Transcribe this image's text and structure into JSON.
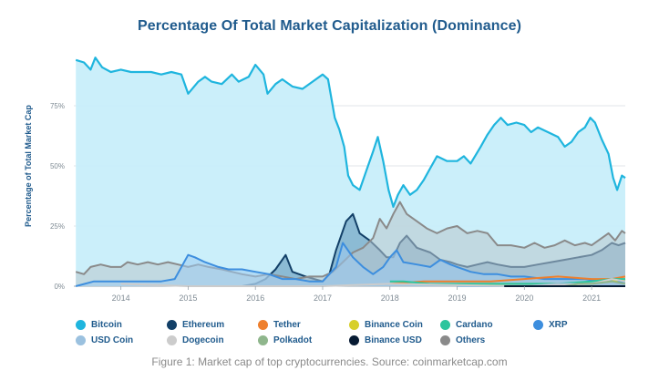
{
  "chart_data": {
    "type": "area",
    "title": "Percentage Of Total Market Capitalization (Dominance)",
    "xlabel": "",
    "ylabel": "Percentage of Total Market Cap",
    "y_ticks": [
      "0%",
      "25%",
      "50%",
      "75%"
    ],
    "x_ticks": [
      "2014",
      "2015",
      "2016",
      "2017",
      "2018",
      "2019",
      "2020",
      "2021"
    ],
    "xlim": [
      2013.3,
      2021.5
    ],
    "ylim": [
      0,
      95
    ],
    "grid": "horizontal",
    "legend_position": "bottom",
    "series": [
      {
        "name": "Bitcoin",
        "color": "#1fb5de",
        "fill": "#c8eefa",
        "points": [
          [
            2013.33,
            94
          ],
          [
            2013.45,
            93
          ],
          [
            2013.55,
            90
          ],
          [
            2013.62,
            95
          ],
          [
            2013.72,
            91
          ],
          [
            2013.85,
            89
          ],
          [
            2014.0,
            90
          ],
          [
            2014.15,
            89
          ],
          [
            2014.3,
            89
          ],
          [
            2014.45,
            89
          ],
          [
            2014.6,
            88
          ],
          [
            2014.75,
            89
          ],
          [
            2014.9,
            88
          ],
          [
            2015.0,
            80
          ],
          [
            2015.15,
            85
          ],
          [
            2015.25,
            87
          ],
          [
            2015.35,
            85
          ],
          [
            2015.5,
            84
          ],
          [
            2015.65,
            88
          ],
          [
            2015.75,
            85
          ],
          [
            2015.9,
            87
          ],
          [
            2016.0,
            92
          ],
          [
            2016.12,
            88
          ],
          [
            2016.18,
            80
          ],
          [
            2016.3,
            84
          ],
          [
            2016.4,
            86
          ],
          [
            2016.55,
            83
          ],
          [
            2016.7,
            82
          ],
          [
            2016.85,
            85
          ],
          [
            2017.0,
            88
          ],
          [
            2017.08,
            86
          ],
          [
            2017.18,
            70
          ],
          [
            2017.25,
            65
          ],
          [
            2017.32,
            58
          ],
          [
            2017.38,
            46
          ],
          [
            2017.45,
            42
          ],
          [
            2017.55,
            40
          ],
          [
            2017.65,
            48
          ],
          [
            2017.75,
            56
          ],
          [
            2017.82,
            62
          ],
          [
            2017.9,
            52
          ],
          [
            2017.98,
            40
          ],
          [
            2018.05,
            33
          ],
          [
            2018.12,
            38
          ],
          [
            2018.2,
            42
          ],
          [
            2018.3,
            38
          ],
          [
            2018.4,
            40
          ],
          [
            2018.5,
            44
          ],
          [
            2018.6,
            49
          ],
          [
            2018.7,
            54
          ],
          [
            2018.85,
            52
          ],
          [
            2019.0,
            52
          ],
          [
            2019.1,
            54
          ],
          [
            2019.2,
            51
          ],
          [
            2019.35,
            58
          ],
          [
            2019.45,
            63
          ],
          [
            2019.55,
            67
          ],
          [
            2019.65,
            70
          ],
          [
            2019.75,
            67
          ],
          [
            2019.88,
            68
          ],
          [
            2020.0,
            67
          ],
          [
            2020.1,
            64
          ],
          [
            2020.2,
            66
          ],
          [
            2020.35,
            64
          ],
          [
            2020.5,
            62
          ],
          [
            2020.6,
            58
          ],
          [
            2020.7,
            60
          ],
          [
            2020.8,
            64
          ],
          [
            2020.9,
            66
          ],
          [
            2020.98,
            70
          ],
          [
            2021.05,
            68
          ],
          [
            2021.15,
            61
          ],
          [
            2021.25,
            55
          ],
          [
            2021.32,
            45
          ],
          [
            2021.38,
            40
          ],
          [
            2021.45,
            46
          ],
          [
            2021.5,
            45
          ]
        ]
      },
      {
        "name": "Ethereum",
        "color": "#123f67",
        "fill": "#5a8fb5",
        "points": [
          [
            2015.6,
            0
          ],
          [
            2015.8,
            0
          ],
          [
            2016.0,
            1
          ],
          [
            2016.15,
            3
          ],
          [
            2016.3,
            7
          ],
          [
            2016.45,
            13
          ],
          [
            2016.55,
            6
          ],
          [
            2016.75,
            4
          ],
          [
            2017.0,
            2
          ],
          [
            2017.1,
            5
          ],
          [
            2017.2,
            15
          ],
          [
            2017.35,
            27
          ],
          [
            2017.45,
            30
          ],
          [
            2017.55,
            22
          ],
          [
            2017.7,
            19
          ],
          [
            2017.85,
            15
          ],
          [
            2017.95,
            12
          ],
          [
            2018.05,
            12
          ],
          [
            2018.15,
            18
          ],
          [
            2018.25,
            21
          ],
          [
            2018.4,
            16
          ],
          [
            2018.6,
            14
          ],
          [
            2018.75,
            11
          ],
          [
            2018.9,
            10
          ],
          [
            2019.0,
            9
          ],
          [
            2019.15,
            8
          ],
          [
            2019.3,
            9
          ],
          [
            2019.45,
            10
          ],
          [
            2019.6,
            9
          ],
          [
            2019.8,
            8
          ],
          [
            2020.0,
            8
          ],
          [
            2020.2,
            9
          ],
          [
            2020.4,
            10
          ],
          [
            2020.6,
            11
          ],
          [
            2020.8,
            12
          ],
          [
            2021.0,
            13
          ],
          [
            2021.15,
            15
          ],
          [
            2021.3,
            18
          ],
          [
            2021.4,
            17
          ],
          [
            2021.5,
            18
          ]
        ]
      },
      {
        "name": "Others",
        "color": "#8a8a8a",
        "fill": "#b9c6cc",
        "points": [
          [
            2013.33,
            6
          ],
          [
            2013.45,
            5
          ],
          [
            2013.55,
            8
          ],
          [
            2013.7,
            9
          ],
          [
            2013.85,
            8
          ],
          [
            2014.0,
            8
          ],
          [
            2014.1,
            10
          ],
          [
            2014.25,
            9
          ],
          [
            2014.4,
            10
          ],
          [
            2014.55,
            9
          ],
          [
            2014.7,
            10
          ],
          [
            2014.85,
            9
          ],
          [
            2015.0,
            8
          ],
          [
            2015.15,
            9
          ],
          [
            2015.3,
            8
          ],
          [
            2015.5,
            7
          ],
          [
            2015.65,
            6
          ],
          [
            2015.8,
            5
          ],
          [
            2016.0,
            4
          ],
          [
            2016.2,
            5
          ],
          [
            2016.4,
            4
          ],
          [
            2016.6,
            3
          ],
          [
            2016.8,
            4
          ],
          [
            2017.0,
            4
          ],
          [
            2017.15,
            6
          ],
          [
            2017.3,
            10
          ],
          [
            2017.45,
            14
          ],
          [
            2017.6,
            16
          ],
          [
            2017.75,
            20
          ],
          [
            2017.85,
            28
          ],
          [
            2017.95,
            24
          ],
          [
            2018.05,
            30
          ],
          [
            2018.15,
            35
          ],
          [
            2018.25,
            30
          ],
          [
            2018.4,
            27
          ],
          [
            2018.55,
            24
          ],
          [
            2018.7,
            22
          ],
          [
            2018.85,
            24
          ],
          [
            2019.0,
            25
          ],
          [
            2019.15,
            22
          ],
          [
            2019.3,
            23
          ],
          [
            2019.45,
            22
          ],
          [
            2019.6,
            17
          ],
          [
            2019.8,
            17
          ],
          [
            2020.0,
            16
          ],
          [
            2020.15,
            18
          ],
          [
            2020.3,
            16
          ],
          [
            2020.45,
            17
          ],
          [
            2020.6,
            19
          ],
          [
            2020.75,
            17
          ],
          [
            2020.9,
            18
          ],
          [
            2021.0,
            17
          ],
          [
            2021.1,
            19
          ],
          [
            2021.25,
            22
          ],
          [
            2021.35,
            19
          ],
          [
            2021.45,
            23
          ],
          [
            2021.5,
            22
          ]
        ]
      },
      {
        "name": "XRP",
        "color": "#3d8ede",
        "fill": "#9ccbf0",
        "points": [
          [
            2013.33,
            0
          ],
          [
            2013.6,
            2
          ],
          [
            2013.8,
            2
          ],
          [
            2014.0,
            2
          ],
          [
            2014.3,
            2
          ],
          [
            2014.6,
            2
          ],
          [
            2014.8,
            3
          ],
          [
            2015.0,
            13
          ],
          [
            2015.1,
            12
          ],
          [
            2015.25,
            10
          ],
          [
            2015.45,
            8
          ],
          [
            2015.6,
            7
          ],
          [
            2015.8,
            7
          ],
          [
            2016.0,
            6
          ],
          [
            2016.2,
            5
          ],
          [
            2016.4,
            3
          ],
          [
            2016.6,
            3
          ],
          [
            2016.8,
            2
          ],
          [
            2017.0,
            2
          ],
          [
            2017.2,
            8
          ],
          [
            2017.3,
            18
          ],
          [
            2017.45,
            12
          ],
          [
            2017.6,
            8
          ],
          [
            2017.75,
            5
          ],
          [
            2017.9,
            8
          ],
          [
            2018.0,
            12
          ],
          [
            2018.1,
            15
          ],
          [
            2018.2,
            10
          ],
          [
            2018.4,
            9
          ],
          [
            2018.6,
            8
          ],
          [
            2018.75,
            11
          ],
          [
            2018.9,
            9
          ],
          [
            2019.0,
            8
          ],
          [
            2019.2,
            6
          ],
          [
            2019.4,
            5
          ],
          [
            2019.6,
            5
          ],
          [
            2019.8,
            4
          ],
          [
            2020.0,
            4
          ],
          [
            2020.3,
            3
          ],
          [
            2020.6,
            3
          ],
          [
            2020.9,
            3
          ],
          [
            2021.1,
            2
          ],
          [
            2021.3,
            2
          ],
          [
            2021.5,
            2
          ]
        ]
      },
      {
        "name": "Tether",
        "color": "#ee7f2d",
        "fill": "none",
        "points": [
          [
            2018.0,
            1
          ],
          [
            2018.5,
            2
          ],
          [
            2019.0,
            2
          ],
          [
            2019.5,
            2
          ],
          [
            2020.0,
            3
          ],
          [
            2020.5,
            4
          ],
          [
            2021.0,
            3
          ],
          [
            2021.3,
            3
          ],
          [
            2021.5,
            4
          ]
        ]
      },
      {
        "name": "Binance Coin",
        "color": "#d7cf2a",
        "fill": "none",
        "points": [
          [
            2019.0,
            1
          ],
          [
            2019.5,
            1
          ],
          [
            2020.0,
            1
          ],
          [
            2020.5,
            1
          ],
          [
            2021.0,
            1
          ],
          [
            2021.3,
            2
          ],
          [
            2021.5,
            3
          ]
        ]
      },
      {
        "name": "Cardano",
        "color": "#2cc59d",
        "fill": "none",
        "points": [
          [
            2018.0,
            2
          ],
          [
            2018.2,
            2
          ],
          [
            2018.6,
            1
          ],
          [
            2019.0,
            1
          ],
          [
            2019.5,
            1
          ],
          [
            2020.0,
            1
          ],
          [
            2020.5,
            1
          ],
          [
            2021.0,
            2
          ],
          [
            2021.3,
            3
          ],
          [
            2021.5,
            3
          ]
        ]
      },
      {
        "name": "USD Coin",
        "color": "#9bc1df",
        "fill": "none",
        "points": [
          [
            2019.0,
            0
          ],
          [
            2019.5,
            0
          ],
          [
            2020.0,
            0
          ],
          [
            2020.5,
            1
          ],
          [
            2021.0,
            1
          ],
          [
            2021.5,
            1
          ]
        ]
      },
      {
        "name": "Dogecoin",
        "color": "#cccccc",
        "fill": "none",
        "points": [
          [
            2014.0,
            1
          ],
          [
            2015.0,
            0
          ],
          [
            2017.0,
            0
          ],
          [
            2018.0,
            1
          ],
          [
            2020.0,
            0
          ],
          [
            2021.0,
            1
          ],
          [
            2021.3,
            3
          ],
          [
            2021.5,
            2
          ]
        ]
      },
      {
        "name": "Polkadot",
        "color": "#8fb68c",
        "fill": "none",
        "points": [
          [
            2020.6,
            0
          ],
          [
            2020.8,
            1
          ],
          [
            2021.0,
            1
          ],
          [
            2021.3,
            2
          ],
          [
            2021.5,
            1
          ]
        ]
      },
      {
        "name": "Binance USD",
        "color": "#071b33",
        "fill": "none",
        "points": [
          [
            2019.7,
            0
          ],
          [
            2020.5,
            0
          ],
          [
            2021.0,
            0
          ],
          [
            2021.5,
            0
          ]
        ]
      }
    ]
  },
  "legend": [
    {
      "label": "Bitcoin",
      "color": "#1fb5de"
    },
    {
      "label": "Ethereum",
      "color": "#123f67"
    },
    {
      "label": "Tether",
      "color": "#ee7f2d"
    },
    {
      "label": "Binance Coin",
      "color": "#d7cf2a"
    },
    {
      "label": "Cardano",
      "color": "#2cc59d"
    },
    {
      "label": "XRP",
      "color": "#3d8ede"
    },
    {
      "label": "USD Coin",
      "color": "#9bc1df"
    },
    {
      "label": "Dogecoin",
      "color": "#cccccc"
    },
    {
      "label": "Polkadot",
      "color": "#8fb68c"
    },
    {
      "label": "Binance USD",
      "color": "#071b33"
    },
    {
      "label": "Others",
      "color": "#8a8a8a"
    }
  ],
  "caption": "Figure 1: Market cap of top cryptocurrencies. Source: coinmarketcap.com"
}
